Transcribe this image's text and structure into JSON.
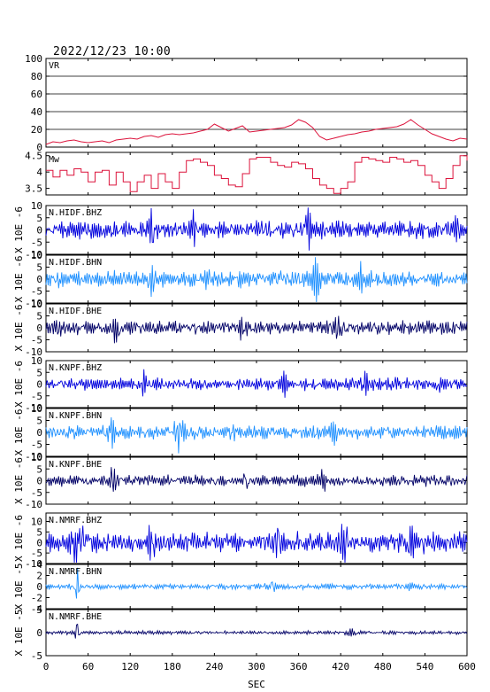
{
  "header": {
    "datetime": "2022/12/23 10:00"
  },
  "colors": {
    "red": "#dc143c",
    "blue": "#0000dd",
    "lightblue": "#1e90ff",
    "navy": "#000066",
    "axis": "#000000",
    "grid": "#000000"
  },
  "chart_data": [
    {
      "type": "line",
      "label": "VR",
      "color": "red",
      "ylim": [
        0,
        100
      ],
      "yticks": [
        0,
        20,
        40,
        60,
        80,
        100
      ],
      "grid": true,
      "x": [
        0,
        10,
        20,
        30,
        40,
        50,
        60,
        70,
        80,
        90,
        100,
        110,
        120,
        130,
        140,
        150,
        160,
        170,
        180,
        190,
        200,
        210,
        220,
        230,
        240,
        250,
        260,
        270,
        280,
        290,
        300,
        310,
        320,
        330,
        340,
        350,
        360,
        370,
        380,
        390,
        400,
        410,
        420,
        430,
        440,
        450,
        460,
        470,
        480,
        490,
        500,
        510,
        520,
        530,
        540,
        550,
        560,
        570,
        580,
        590,
        600
      ],
      "y": [
        3,
        6,
        5,
        7,
        8,
        6,
        5,
        6,
        7,
        5,
        8,
        9,
        10,
        9,
        12,
        13,
        11,
        14,
        15,
        14,
        15,
        16,
        18,
        20,
        26,
        22,
        18,
        21,
        24,
        17,
        18,
        19,
        20,
        21,
        22,
        25,
        31,
        28,
        22,
        12,
        8,
        10,
        12,
        14,
        15,
        17,
        18,
        20,
        21,
        22,
        23,
        26,
        31,
        25,
        20,
        15,
        12,
        9,
        7,
        10,
        9
      ]
    },
    {
      "type": "line",
      "label": "Mw",
      "color": "red",
      "ylim": [
        3.3,
        4.6
      ],
      "yticks": [
        3.5,
        4.0,
        4.5
      ],
      "grid": false,
      "x": [
        0,
        10,
        20,
        30,
        40,
        50,
        60,
        70,
        80,
        90,
        100,
        110,
        120,
        130,
        140,
        150,
        160,
        170,
        180,
        190,
        200,
        210,
        220,
        230,
        240,
        250,
        260,
        270,
        280,
        290,
        300,
        310,
        320,
        330,
        340,
        350,
        360,
        370,
        380,
        390,
        400,
        410,
        420,
        430,
        440,
        450,
        460,
        470,
        480,
        490,
        500,
        510,
        520,
        530,
        540,
        550,
        560,
        570,
        580,
        590,
        600
      ],
      "y": [
        4.05,
        3.85,
        4.05,
        3.9,
        4.1,
        4.0,
        3.7,
        4.0,
        4.05,
        3.6,
        4.0,
        3.7,
        3.4,
        3.7,
        3.9,
        3.5,
        3.95,
        3.7,
        3.5,
        4.0,
        4.35,
        4.4,
        4.3,
        4.2,
        3.9,
        3.8,
        3.6,
        3.55,
        3.95,
        4.4,
        4.45,
        4.45,
        4.3,
        4.2,
        4.15,
        4.3,
        4.25,
        4.1,
        3.8,
        3.6,
        3.5,
        3.35,
        3.5,
        3.7,
        4.3,
        4.45,
        4.4,
        4.35,
        4.3,
        4.45,
        4.4,
        4.3,
        4.35,
        4.2,
        3.9,
        3.7,
        3.5,
        3.8,
        4.2,
        4.5,
        4.35
      ]
    },
    {
      "type": "waveform",
      "label": "N.HIDF.BHZ",
      "color": "blue",
      "ylim": [
        -10,
        10
      ],
      "yticks": [
        -10,
        -5,
        0,
        5,
        10
      ],
      "ylabel": "X 10E -6",
      "amp": 3.2,
      "freq": 0.47,
      "seed": 11,
      "bursts": [
        [
          150,
          6,
          5
        ],
        [
          210,
          5,
          4
        ],
        [
          373,
          7,
          5
        ],
        [
          585,
          4,
          3
        ]
      ]
    },
    {
      "type": "waveform",
      "label": "N.HIDF.BHN",
      "color": "lightblue",
      "ylim": [
        -10,
        10
      ],
      "yticks": [
        -10,
        -5,
        0,
        5,
        10
      ],
      "ylabel": "X 10E -6",
      "amp": 3.0,
      "freq": 0.45,
      "seed": 23,
      "bursts": [
        [
          150,
          6,
          5
        ],
        [
          230,
          4,
          3
        ],
        [
          385,
          7,
          6
        ],
        [
          450,
          4,
          4
        ]
      ]
    },
    {
      "type": "waveform",
      "label": "N.HIDF.BHE",
      "color": "navy",
      "ylim": [
        -10,
        10
      ],
      "yticks": [
        -10,
        -5,
        0,
        5,
        10
      ],
      "ylabel": "X 10E -6",
      "amp": 2.7,
      "freq": 0.46,
      "seed": 37,
      "bursts": [
        [
          20,
          4,
          4
        ],
        [
          100,
          5,
          4
        ],
        [
          280,
          5,
          4
        ],
        [
          415,
          4,
          4
        ]
      ]
    },
    {
      "type": "waveform",
      "label": "N.KNPF.BHZ",
      "color": "blue",
      "ylim": [
        -10,
        10
      ],
      "yticks": [
        -10,
        -5,
        0,
        5,
        10
      ],
      "ylabel": "X 10E -6",
      "amp": 2.4,
      "freq": 0.44,
      "seed": 41,
      "bursts": [
        [
          140,
          4,
          4
        ],
        [
          340,
          4,
          4
        ],
        [
          455,
          4,
          4
        ],
        [
          560,
          3,
          3
        ]
      ]
    },
    {
      "type": "waveform",
      "label": "N.KNPF.BHN",
      "color": "lightblue",
      "ylim": [
        -10,
        10
      ],
      "yticks": [
        -10,
        -5,
        0,
        5,
        10
      ],
      "ylabel": "X 10E -6",
      "amp": 2.5,
      "freq": 0.46,
      "seed": 53,
      "bursts": [
        [
          93,
          5,
          5
        ],
        [
          190,
          6,
          6
        ],
        [
          265,
          4,
          4
        ],
        [
          410,
          4,
          4
        ]
      ]
    },
    {
      "type": "waveform",
      "label": "N.KNPF.BHE",
      "color": "navy",
      "ylim": [
        -10,
        10
      ],
      "yticks": [
        -10,
        -5,
        0,
        5,
        10
      ],
      "ylabel": "X 10E -6",
      "amp": 2.1,
      "freq": 0.45,
      "seed": 67,
      "bursts": [
        [
          95,
          5,
          5
        ],
        [
          285,
          4,
          4
        ],
        [
          395,
          3,
          4
        ]
      ]
    },
    {
      "type": "waveform",
      "label": "N.NMRF.BHZ",
      "color": "blue",
      "ylim": [
        -10,
        14
      ],
      "yticks": [
        -10,
        -5,
        0,
        5,
        10
      ],
      "ylabel": "X 10E -6",
      "amp": 4.2,
      "freq": 0.5,
      "seed": 79,
      "bursts": [
        [
          45,
          10,
          8
        ],
        [
          150,
          6,
          6
        ],
        [
          330,
          7,
          6
        ],
        [
          425,
          6,
          6
        ],
        [
          520,
          5,
          5
        ]
      ]
    },
    {
      "type": "waveform",
      "label": "N.NMRF.BHN",
      "color": "lightblue",
      "ylim": [
        -4,
        4
      ],
      "yticks": [
        -4,
        -2,
        0,
        2,
        4
      ],
      "ylabel": "X 10E -5",
      "amp": 0.45,
      "freq": 0.48,
      "seed": 83,
      "bursts": [
        [
          44,
          3.5,
          3
        ],
        [
          320,
          1.3,
          6
        ],
        [
          520,
          0.8,
          5
        ]
      ]
    },
    {
      "type": "waveform",
      "label": "N.NMRF.BHE",
      "color": "navy",
      "ylim": [
        -5,
        5
      ],
      "yticks": [
        -5,
        0,
        5
      ],
      "ylabel": "X 10E -5",
      "amp": 0.35,
      "freq": 0.47,
      "seed": 97,
      "bursts": [
        [
          44,
          2.8,
          3
        ],
        [
          435,
          0.7,
          6
        ]
      ]
    }
  ],
  "xaxis": {
    "ticks": [
      0,
      60,
      120,
      180,
      240,
      300,
      360,
      420,
      480,
      540,
      600
    ],
    "label": "SEC",
    "range": [
      0,
      600
    ]
  }
}
